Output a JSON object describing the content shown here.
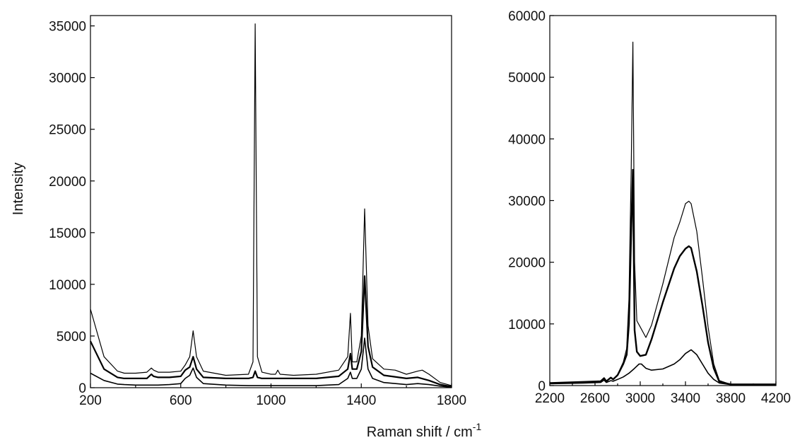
{
  "figure": {
    "ylabel": "Intensity",
    "xlabel": "Raman shift / cm",
    "xlabel_superscript": "-1"
  },
  "chart_data": [
    {
      "type": "line",
      "xlim": [
        200,
        1800
      ],
      "ylim": [
        0,
        36000
      ],
      "xticks": [
        200,
        600,
        1000,
        1400,
        1800
      ],
      "yticks": [
        0,
        5000,
        10000,
        15000,
        20000,
        25000,
        30000,
        35000
      ],
      "xtick_labels": [
        "200",
        "600",
        "1000",
        "1400",
        "1800"
      ],
      "ytick_labels": [
        "0",
        "5000",
        "10000",
        "15000",
        "20000",
        "25000",
        "30000",
        "35000"
      ],
      "grid": false,
      "series": [
        {
          "x": [
            200,
            260,
            320,
            350,
            400,
            450,
            470,
            480,
            500,
            550,
            600,
            620,
            640,
            655,
            670,
            700,
            800,
            900,
            920,
            930,
            940,
            960,
            1000,
            1020,
            1030,
            1040,
            1100,
            1200,
            1300,
            1340,
            1352,
            1360,
            1380,
            1400,
            1415,
            1430,
            1450,
            1500,
            1550,
            1600,
            1650,
            1670,
            1700,
            1750,
            1800
          ],
          "y": [
            7600,
            3000,
            1600,
            1400,
            1400,
            1500,
            1900,
            1700,
            1500,
            1500,
            1600,
            2200,
            3000,
            5500,
            3000,
            1600,
            1200,
            1300,
            2500,
            35200,
            3000,
            1500,
            1300,
            1300,
            1700,
            1300,
            1200,
            1300,
            1700,
            3000,
            7200,
            2500,
            2500,
            5000,
            17300,
            6000,
            2800,
            1800,
            1700,
            1300,
            1600,
            1700,
            1300,
            500,
            200
          ],
          "stroke_width": 1.2
        },
        {
          "x": [
            200,
            260,
            320,
            350,
            400,
            450,
            470,
            480,
            500,
            550,
            600,
            620,
            640,
            655,
            670,
            700,
            800,
            900,
            920,
            930,
            940,
            960,
            1000,
            1100,
            1200,
            1300,
            1340,
            1352,
            1360,
            1380,
            1400,
            1415,
            1430,
            1450,
            1500,
            1600,
            1650,
            1700,
            1750,
            1800
          ],
          "y": [
            4500,
            1800,
            1000,
            900,
            900,
            900,
            1300,
            1100,
            1000,
            1000,
            1100,
            1700,
            2000,
            3000,
            1800,
            1000,
            900,
            900,
            1000,
            1600,
            1000,
            900,
            900,
            900,
            900,
            1100,
            1800,
            3300,
            1800,
            1800,
            3500,
            10800,
            4000,
            2000,
            1200,
            900,
            1000,
            700,
            300,
            100
          ],
          "stroke_width": 2.2
        },
        {
          "x": [
            200,
            260,
            320,
            350,
            400,
            450,
            500,
            550,
            600,
            620,
            640,
            655,
            670,
            700,
            800,
            900,
            930,
            1000,
            1100,
            1200,
            1300,
            1340,
            1352,
            1360,
            1380,
            1400,
            1415,
            1430,
            1450,
            1500,
            1600,
            1650,
            1700,
            1750,
            1800
          ],
          "y": [
            1400,
            700,
            350,
            300,
            250,
            250,
            250,
            300,
            400,
            900,
            1200,
            1900,
            1000,
            400,
            250,
            200,
            200,
            200,
            200,
            200,
            300,
            900,
            1500,
            900,
            900,
            1800,
            4800,
            1800,
            900,
            500,
            300,
            400,
            300,
            150,
            50
          ],
          "stroke_width": 1.6
        }
      ]
    },
    {
      "type": "line",
      "xlim": [
        2200,
        4200
      ],
      "ylim": [
        0,
        60000
      ],
      "xticks": [
        2200,
        2600,
        3000,
        3400,
        3800,
        4200
      ],
      "yticks": [
        0,
        10000,
        20000,
        30000,
        40000,
        50000,
        60000
      ],
      "xtick_labels": [
        "2200",
        "2600",
        "3000",
        "3400",
        "3800",
        "4200"
      ],
      "ytick_labels": [
        "0",
        "10000",
        "20000",
        "30000",
        "40000",
        "50000",
        "60000"
      ],
      "grid": false,
      "series": [
        {
          "x": [
            2200,
            2500,
            2650,
            2680,
            2700,
            2740,
            2760,
            2800,
            2850,
            2880,
            2900,
            2920,
            2935,
            2950,
            2970,
            3000,
            3050,
            3100,
            3200,
            3300,
            3350,
            3400,
            3430,
            3450,
            3500,
            3550,
            3600,
            3650,
            3700,
            3800,
            4200
          ],
          "y": [
            400,
            600,
            700,
            1200,
            700,
            1300,
            1000,
            1800,
            3800,
            6000,
            14000,
            35000,
            55700,
            20000,
            10500,
            9500,
            7800,
            9800,
            16500,
            24000,
            26500,
            29500,
            29900,
            29500,
            25000,
            17500,
            9500,
            3500,
            800,
            200,
            200
          ],
          "stroke_width": 1.2
        },
        {
          "x": [
            2200,
            2500,
            2650,
            2680,
            2700,
            2740,
            2760,
            2800,
            2850,
            2880,
            2900,
            2920,
            2935,
            2950,
            2970,
            3000,
            3050,
            3100,
            3200,
            3300,
            3350,
            3400,
            3430,
            3450,
            3500,
            3550,
            3600,
            3650,
            3700,
            3800,
            4200
          ],
          "y": [
            400,
            600,
            700,
            1200,
            700,
            1300,
            1000,
            1700,
            3500,
            5000,
            10000,
            25000,
            35000,
            9000,
            5500,
            4800,
            5000,
            7500,
            13500,
            19000,
            21000,
            22200,
            22600,
            22300,
            18500,
            13000,
            7000,
            2800,
            600,
            200,
            200
          ],
          "stroke_width": 2.4
        },
        {
          "x": [
            2200,
            2500,
            2650,
            2680,
            2700,
            2740,
            2760,
            2800,
            2850,
            2900,
            2950,
            2990,
            3010,
            3050,
            3100,
            3200,
            3300,
            3350,
            3400,
            3450,
            3500,
            3550,
            3600,
            3650,
            3700,
            3800,
            4200
          ],
          "y": [
            300,
            400,
            500,
            900,
            500,
            800,
            700,
            1000,
            1400,
            2000,
            2800,
            3500,
            3500,
            2800,
            2500,
            2700,
            3500,
            4200,
            5200,
            5800,
            5000,
            3500,
            2000,
            1000,
            400,
            150,
            100
          ],
          "stroke_width": 1.6
        }
      ]
    }
  ]
}
